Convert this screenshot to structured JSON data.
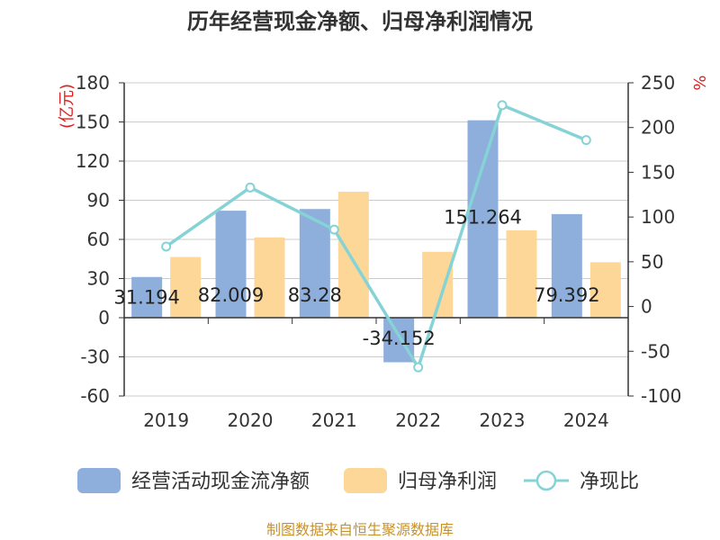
{
  "title": "历年经营现金净额、归母净利润情况",
  "source": "制图数据来自恒生聚源数据库",
  "chart_data": {
    "type": "bar",
    "title": "历年经营现金净额、归母净利润情况",
    "categories": [
      "2019",
      "2020",
      "2021",
      "2022",
      "2023",
      "2024"
    ],
    "y_left": {
      "unit": "(亿元)",
      "min": -60,
      "max": 180,
      "ticks": [
        -60,
        -30,
        0,
        30,
        60,
        90,
        120,
        150,
        180
      ]
    },
    "y_right": {
      "unit": "%",
      "min": -100,
      "max": 250,
      "ticks": [
        -100,
        -50,
        0,
        50,
        100,
        150,
        200,
        250
      ]
    },
    "grid": true,
    "legend_position": "bottom",
    "series": [
      {
        "name": "经营活动现金流净额",
        "type": "bar",
        "axis": "left",
        "color": "#8eaedb",
        "values": [
          31.194,
          82.009,
          83.28,
          -34.152,
          151.264,
          79.392
        ],
        "labels": [
          "31.194",
          "82.009",
          "83.28",
          "-34.152",
          "151.264",
          "79.392"
        ]
      },
      {
        "name": "归母净利润",
        "type": "bar",
        "axis": "left",
        "color": "#fdd797",
        "values": [
          46.5,
          61.5,
          96.5,
          50.5,
          67.0,
          42.5
        ]
      },
      {
        "name": "净现比",
        "type": "line",
        "axis": "right",
        "color": "#85d3d6",
        "values": [
          67,
          133,
          86,
          -68,
          225,
          186
        ]
      }
    ]
  }
}
